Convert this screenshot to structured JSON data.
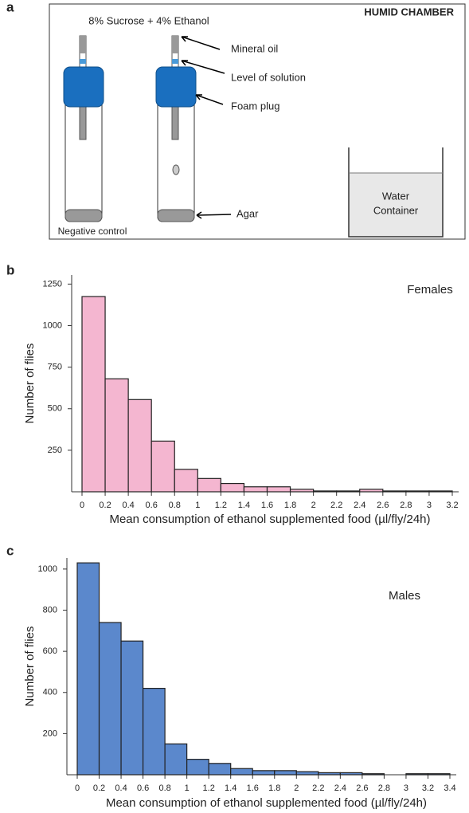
{
  "diagram": {
    "panel": "a",
    "title": "HUMID CHAMBER",
    "solution": "8% Sucrose + 4% Ethanol",
    "labels": [
      "Mineral oil",
      "Level of solution",
      "Foam plug",
      "Agar"
    ],
    "control": "Negative control",
    "container": [
      "Water",
      "Container"
    ]
  },
  "chart_data": [
    {
      "type": "histogram",
      "panel": "b",
      "annotation": "Females",
      "color": "#f4b6d0",
      "x_label": "Mean  consumption of ethanol supplemented food (µl/fly/24h)",
      "y_label": "Number of flies",
      "bins": [
        0,
        0.2,
        0.4,
        0.6,
        0.8,
        1,
        1.2,
        1.4,
        1.6,
        1.8,
        2,
        2.2,
        2.4,
        2.6,
        2.8,
        3,
        3.2
      ],
      "counts": [
        1175,
        680,
        555,
        305,
        135,
        80,
        50,
        30,
        30,
        15,
        5,
        5,
        15,
        5,
        5,
        5
      ],
      "xlim": [
        0,
        3.2
      ],
      "xticks": [
        0,
        0.2,
        0.4,
        0.6,
        0.8,
        1,
        1.2,
        1.4,
        1.6,
        1.8,
        2,
        2.2,
        2.4,
        2.6,
        2.8,
        3,
        3.2
      ],
      "ylim": [
        0,
        1300
      ],
      "yticks": [
        250,
        500,
        750,
        1000,
        1250
      ]
    },
    {
      "type": "histogram",
      "panel": "c",
      "annotation": "Males",
      "color": "#5b88cc",
      "x_label": "Mean  consumption of ethanol supplemented food (µl/fly/24h)",
      "y_label": "Number of flies",
      "bins": [
        0,
        0.2,
        0.4,
        0.6,
        0.8,
        1,
        1.2,
        1.4,
        1.6,
        1.8,
        2,
        2.2,
        2.4,
        2.6,
        2.8,
        3,
        3.2,
        3.4
      ],
      "counts": [
        1030,
        740,
        650,
        420,
        150,
        75,
        55,
        30,
        20,
        20,
        15,
        10,
        10,
        5,
        0,
        5,
        5
      ],
      "xlim": [
        0,
        3.4
      ],
      "xticks": [
        0,
        0.2,
        0.4,
        0.6,
        0.8,
        1,
        1.2,
        1.4,
        1.6,
        1.8,
        2,
        2.2,
        2.4,
        2.6,
        2.8,
        3,
        3.2,
        3.4
      ],
      "ylim": [
        0,
        1050
      ],
      "yticks": [
        200,
        400,
        600,
        800,
        1000
      ]
    }
  ]
}
